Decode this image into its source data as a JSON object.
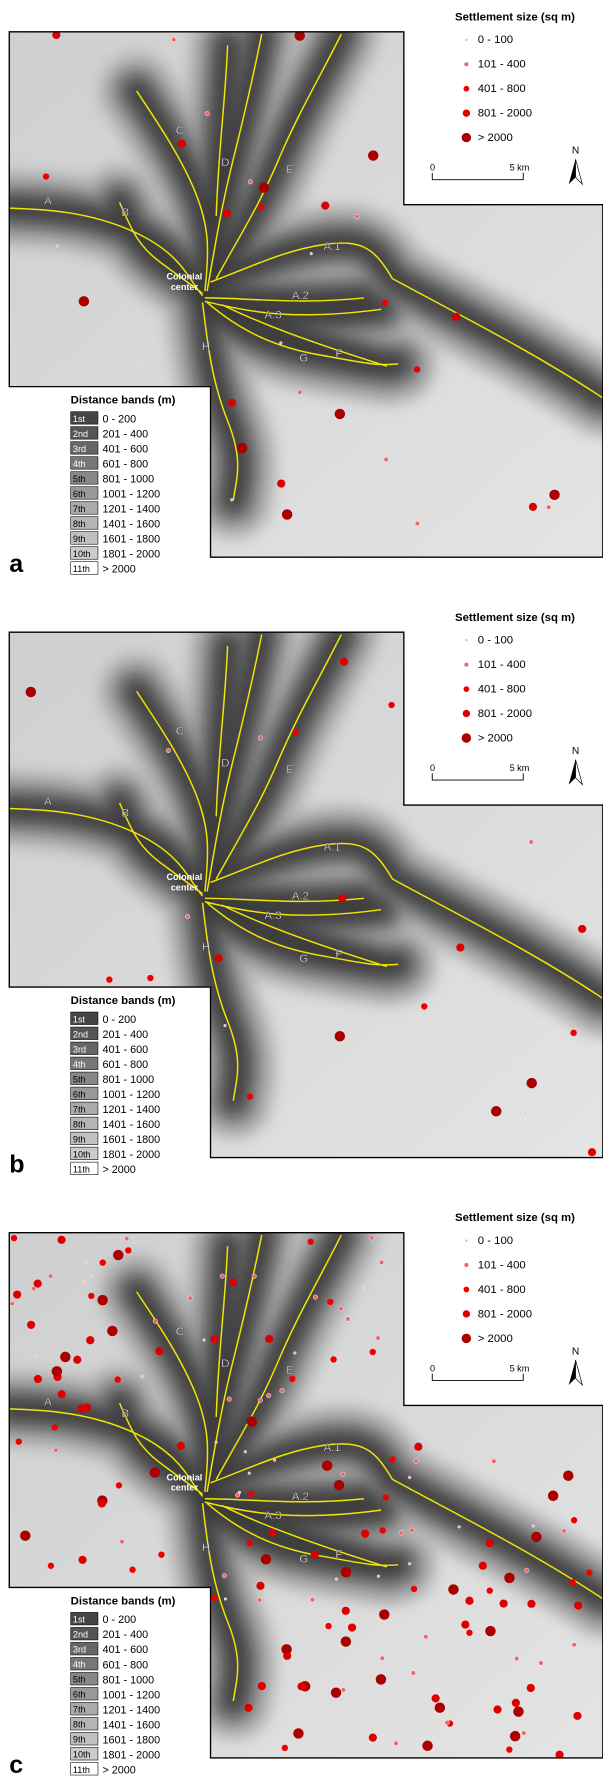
{
  "panels": [
    {
      "letter": "a"
    },
    {
      "letter": "b"
    },
    {
      "letter": "c"
    }
  ],
  "settlement_legend": {
    "title": "Settlement size (sq m)",
    "items": [
      "0 - 100",
      "101 - 400",
      "401 - 800",
      "801 - 2000",
      "> 2000"
    ]
  },
  "distance_legend": {
    "title": "Distance bands (m)",
    "items": [
      {
        "band": "1st",
        "range": "0 - 200"
      },
      {
        "band": "2nd",
        "range": "201 - 400"
      },
      {
        "band": "3rd",
        "range": "401 - 600"
      },
      {
        "band": "4th",
        "range": "601 - 800"
      },
      {
        "band": "5th",
        "range": "801 - 1000"
      },
      {
        "band": "6th",
        "range": "1001 - 1200"
      },
      {
        "band": "7th",
        "range": "1201 - 1400"
      },
      {
        "band": "8th",
        "range": "1401 - 1600"
      },
      {
        "band": "9th",
        "range": "1601 - 1800"
      },
      {
        "band": "10th",
        "range": "1801 - 2000"
      },
      {
        "band": "11th",
        "range": "> 2000"
      }
    ]
  },
  "scale": {
    "start": "0",
    "end": "5 km"
  },
  "north": "N",
  "route_labels": [
    "A",
    "B",
    "C",
    "D",
    "E",
    "A.1",
    "A.2",
    "A.3",
    "F",
    "G",
    "H"
  ],
  "colonial_center": [
    "Colonial",
    "center"
  ]
}
